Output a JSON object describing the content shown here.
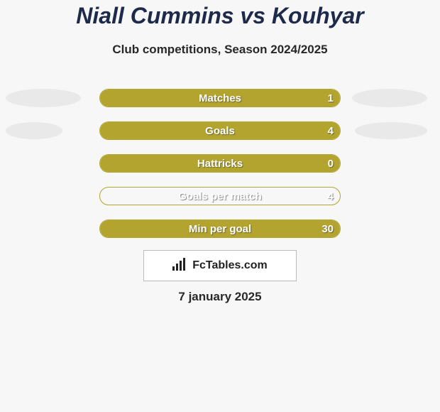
{
  "background_color": "#f7f7f7",
  "title": {
    "text": "Niall Cummins vs Kouhyar",
    "color": "#1e2a4a",
    "fontsize": 32
  },
  "subtitle": {
    "text": "Club competitions, Season 2024/2025",
    "color": "#282828",
    "fontsize": 17
  },
  "logo": {
    "text": "FcTables.com",
    "icon_name": "bar-chart-icon",
    "border_color": "#bbbbbb"
  },
  "date": {
    "text": "7 january 2025",
    "color": "#282828"
  },
  "bar_track_width": 340,
  "label_text_color": "#ffffff",
  "value_text_color": "#ffffff",
  "rows": [
    {
      "label": "Matches",
      "value": "1",
      "fill_percent": 100,
      "fill_color": "#b2a42e",
      "border_color": "#b2a42e",
      "left_ellipse": {
        "visible": true,
        "width": 106,
        "height": 26,
        "color": "#e9e9e9"
      },
      "right_ellipse": {
        "visible": true,
        "width": 106,
        "height": 26,
        "color": "#e9e9e9"
      }
    },
    {
      "label": "Goals",
      "value": "4",
      "fill_percent": 100,
      "fill_color": "#b2a42e",
      "border_color": "#b2a42e",
      "left_ellipse": {
        "visible": true,
        "width": 80,
        "height": 24,
        "color": "#e9e9e9"
      },
      "right_ellipse": {
        "visible": true,
        "width": 102,
        "height": 24,
        "color": "#e9e9e9"
      }
    },
    {
      "label": "Hattricks",
      "value": "0",
      "fill_percent": 100,
      "fill_color": "#b2a42e",
      "border_color": "#b2a42e",
      "left_ellipse": {
        "visible": false
      },
      "right_ellipse": {
        "visible": false
      }
    },
    {
      "label": "Goals per match",
      "value": "4",
      "fill_percent": 0,
      "fill_color": "#b2a42e",
      "border_color": "#b2a42e",
      "left_ellipse": {
        "visible": false
      },
      "right_ellipse": {
        "visible": false
      }
    },
    {
      "label": "Min per goal",
      "value": "30",
      "fill_percent": 100,
      "fill_color": "#b2a42e",
      "border_color": "#b2a42e",
      "left_ellipse": {
        "visible": false
      },
      "right_ellipse": {
        "visible": false
      }
    }
  ]
}
